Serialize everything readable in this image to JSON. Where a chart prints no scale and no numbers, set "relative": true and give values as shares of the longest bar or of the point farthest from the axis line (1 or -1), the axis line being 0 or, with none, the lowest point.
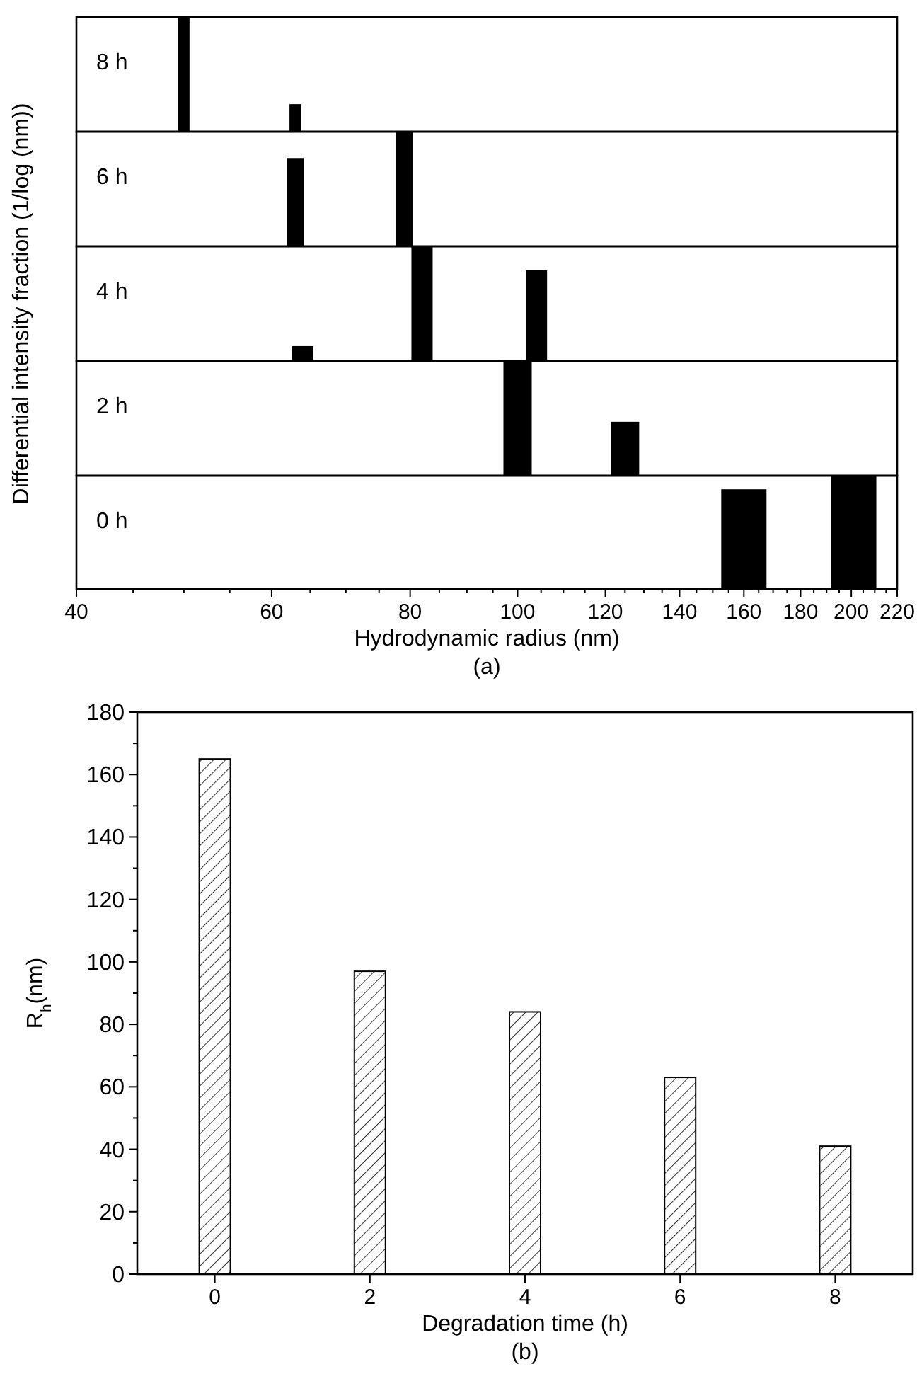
{
  "chart_data": [
    {
      "type": "bar",
      "title": "8 h",
      "x": [
        50,
        63
      ],
      "values": [
        1,
        0.24
      ],
      "relative": true,
      "color": "#000000",
      "log": "x",
      "xlim": [
        40,
        220
      ],
      "tick_labels": false
    },
    {
      "type": "bar",
      "title": "6 h",
      "x": [
        63,
        79
      ],
      "values": [
        0.77,
        1
      ],
      "relative": true,
      "color": "#000000",
      "log": "x",
      "xlim": [
        40,
        220
      ],
      "tick_labels": false
    },
    {
      "type": "bar",
      "title": "4 h",
      "ylabel": "Differential intensity fraction (1/log (nm))",
      "x": [
        64,
        82,
        104
      ],
      "values": [
        0.13,
        1,
        0.79
      ],
      "relative": true,
      "color": "#000000",
      "log": "x",
      "xlim": [
        40,
        220
      ],
      "tick_labels": false
    },
    {
      "type": "bar",
      "title": "2 h",
      "x": [
        100,
        125
      ],
      "values": [
        1,
        0.47
      ],
      "relative": true,
      "color": "#000000",
      "log": "x",
      "xlim": [
        40,
        220
      ],
      "tick_labels": false
    },
    {
      "type": "bar",
      "title": "0 h",
      "xlabel": "Hydrodynamic radius (nm)",
      "annotations": [
        "(a)"
      ],
      "x": [
        160,
        201
      ],
      "values": [
        0.88,
        1
      ],
      "relative": true,
      "color": "#000000",
      "log": "x",
      "xlim": [
        40,
        220
      ],
      "tick_labels": "x",
      "xticks": [
        40,
        {
          "value": 45,
          "label": null
        },
        {
          "value": 50,
          "label": null
        },
        {
          "value": 55,
          "label": null
        },
        60,
        {
          "value": 65,
          "label": null
        },
        {
          "value": 70,
          "label": null
        },
        {
          "value": 75,
          "label": null
        },
        80,
        {
          "value": 85,
          "label": null
        },
        {
          "value": 90,
          "label": null
        },
        {
          "value": 95,
          "label": null
        },
        100,
        {
          "value": 105,
          "label": null
        },
        {
          "value": 110,
          "label": null
        },
        {
          "value": 115,
          "label": null
        },
        120,
        {
          "value": 125,
          "label": null
        },
        {
          "value": 130,
          "label": null
        },
        {
          "value": 135,
          "label": null
        },
        140,
        {
          "value": 145,
          "label": null
        },
        {
          "value": 150,
          "label": null
        },
        {
          "value": 155,
          "label": null
        },
        160,
        {
          "value": 165,
          "label": null
        },
        {
          "value": 170,
          "label": null
        },
        {
          "value": 175,
          "label": null
        },
        180,
        {
          "value": 185,
          "label": null
        },
        {
          "value": 190,
          "label": null
        },
        {
          "value": 195,
          "label": null
        },
        200,
        {
          "value": 205,
          "label": null
        },
        {
          "value": 210,
          "label": null
        },
        {
          "value": 215,
          "label": null
        },
        220
      ]
    },
    {
      "type": "bar",
      "xlabel": "Degradation time (h)",
      "ylabel": "R$_{h}$(nm)",
      "annotations": [
        "(b)"
      ],
      "x": [
        0,
        2,
        4,
        6,
        8
      ],
      "values": [
        165,
        97,
        84,
        63,
        41
      ],
      "color": "#000000",
      "xlim": [
        -1,
        9
      ],
      "xticks": [
        0,
        2,
        4,
        6,
        8
      ],
      "ylim": [
        0,
        180
      ],
      "yticks": [
        0,
        {
          "value": 10,
          "label": null
        },
        20,
        {
          "value": 30,
          "label": null
        },
        40,
        {
          "value": 50,
          "label": null
        },
        60,
        {
          "value": 70,
          "label": null
        },
        80,
        {
          "value": 90,
          "label": null
        },
        100,
        {
          "value": 110,
          "label": null
        },
        120,
        {
          "value": 130,
          "label": null
        },
        140,
        {
          "value": 150,
          "label": null
        },
        160,
        {
          "value": 170,
          "label": null
        },
        180
      ]
    }
  ]
}
